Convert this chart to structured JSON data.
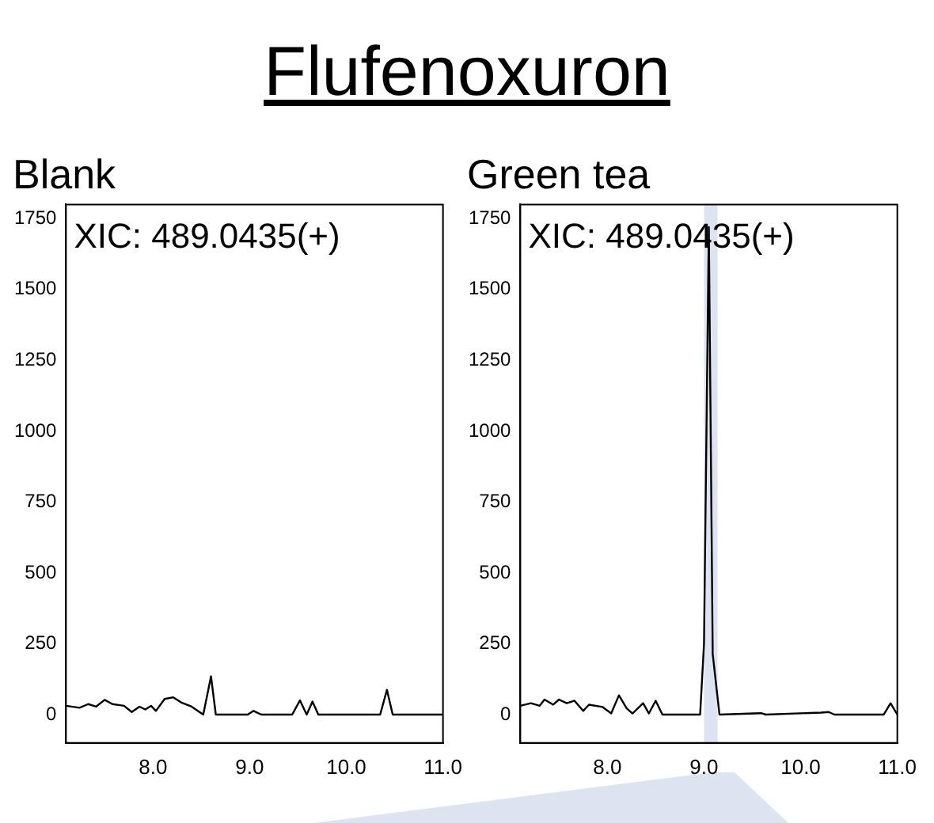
{
  "chart_data": [
    {
      "type": "line",
      "title": "Blank",
      "annotations": [
        "Flufenoxuron",
        "XIC: 489.0435(+)"
      ],
      "xlim": [
        7.1,
        11.0
      ],
      "ylim": [
        -100,
        1800
      ],
      "xticks": [
        {
          "value": 8,
          "label": "8.0"
        },
        {
          "value": 9,
          "label": "9.0"
        },
        {
          "value": 10,
          "label": "10.0"
        },
        {
          "value": 11,
          "label": "11.0"
        }
      ],
      "yticks": [
        0,
        250,
        500,
        750,
        1000,
        1250,
        1500,
        1750
      ],
      "grid": false,
      "legend": false,
      "marker": "none",
      "series": [
        {
          "color": "#000000",
          "x": [
            7.1,
            7.24,
            7.33,
            7.41,
            7.5,
            7.58,
            7.7,
            7.78,
            7.86,
            7.92,
            7.98,
            8.03,
            8.12,
            8.21,
            8.29,
            8.4,
            8.52,
            8.6,
            8.65,
            8.98,
            9.04,
            9.12,
            9.44,
            9.52,
            9.59,
            9.65,
            9.71,
            10.35,
            10.42,
            10.48,
            11.0
          ],
          "values": [
            31,
            24,
            37,
            28,
            52,
            37,
            31,
            9,
            28,
            18,
            31,
            13,
            55,
            61,
            43,
            28,
            0,
            135,
            0,
            0,
            13,
            0,
            0,
            50,
            0,
            46,
            0,
            0,
            87,
            0,
            0
          ]
        }
      ]
    },
    {
      "type": "line",
      "title": "Green tea",
      "annotations": [
        "XIC: 489.0435(+)"
      ],
      "xlim": [
        7.1,
        11.0
      ],
      "ylim": [
        -100,
        1800
      ],
      "xticks": [
        {
          "value": 8,
          "label": "8.0"
        },
        {
          "value": 9,
          "label": "9.0"
        },
        {
          "value": 10,
          "label": "10.0"
        },
        {
          "value": 11,
          "label": "11.0"
        }
      ],
      "yticks": [
        0,
        250,
        500,
        750,
        1000,
        1250,
        1500,
        1750
      ],
      "grid": false,
      "legend": false,
      "marker": "none",
      "bands": [
        {
          "axis": "x",
          "from": 9.0,
          "to": 9.14,
          "color": "#dde3f0"
        }
      ],
      "series": [
        {
          "color": "#000000",
          "x": [
            7.1,
            7.21,
            7.3,
            7.35,
            7.44,
            7.5,
            7.58,
            7.66,
            7.75,
            7.81,
            7.95,
            8.04,
            8.12,
            8.2,
            8.26,
            8.37,
            8.43,
            8.5,
            8.57,
            8.96,
            9.0,
            9.05,
            9.09,
            9.16,
            9.59,
            9.64,
            10.21,
            10.29,
            10.35,
            10.86,
            10.93,
            11.0
          ],
          "values": [
            31,
            40,
            31,
            53,
            35,
            53,
            40,
            49,
            13,
            35,
            27,
            4,
            68,
            22,
            4,
            40,
            4,
            49,
            0,
            0,
            250,
            1720,
            214,
            0,
            5,
            0,
            7,
            9,
            0,
            0,
            40,
            0
          ]
        }
      ]
    }
  ]
}
